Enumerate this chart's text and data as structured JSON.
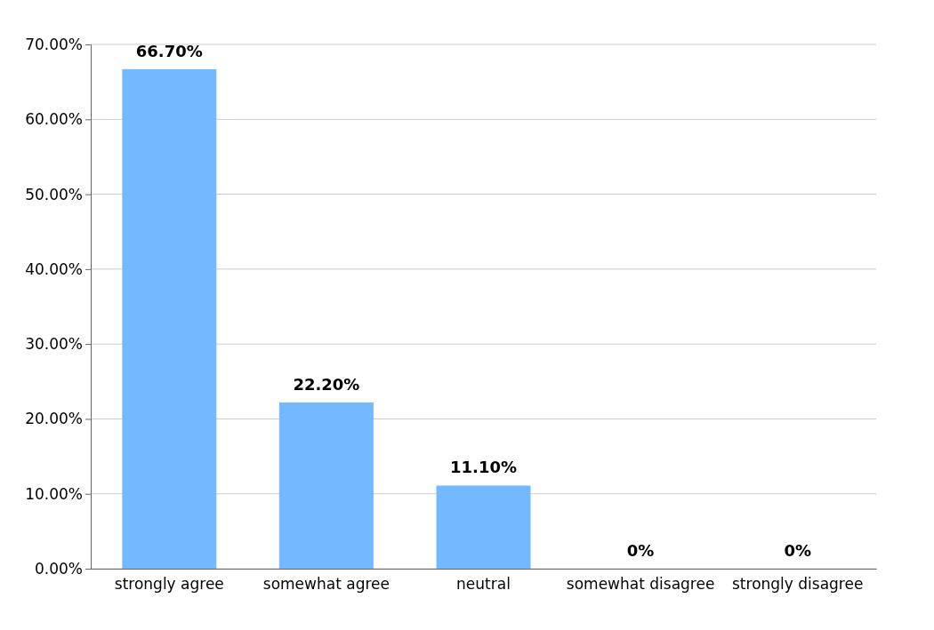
{
  "chart_data": {
    "type": "bar",
    "categories": [
      "strongly agree",
      "somewhat agree",
      "neutral",
      "somewhat disagree",
      "strongly disagree"
    ],
    "values": [
      66.7,
      22.2,
      11.1,
      0,
      0
    ],
    "value_labels": [
      "66.70%",
      "22.20%",
      "11.10%",
      "0%",
      "0%"
    ],
    "color": "#74b9ff",
    "ylim": [
      0,
      70
    ],
    "yticks": [
      {
        "value": 0,
        "label": "0.00%"
      },
      {
        "value": 10,
        "label": "10.00%"
      },
      {
        "value": 20,
        "label": "20.00%"
      },
      {
        "value": 30,
        "label": "30.00%"
      },
      {
        "value": 40,
        "label": "40.00%"
      },
      {
        "value": 50,
        "label": "50.00%"
      },
      {
        "value": 60,
        "label": "60.00%"
      },
      {
        "value": 70,
        "label": "70.00%"
      }
    ],
    "grid": "y"
  }
}
